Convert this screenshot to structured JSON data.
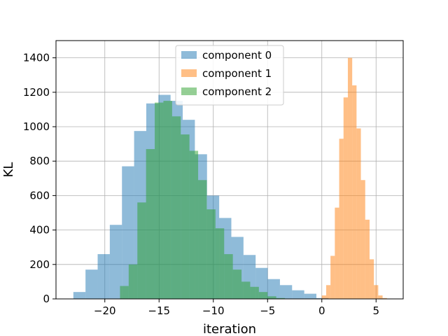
{
  "chart_data": {
    "type": "histogram",
    "xlabel": "iteration",
    "ylabel": "KL",
    "xlim": [
      -24.5,
      7.5
    ],
    "ylim": [
      0,
      1500
    ],
    "xticks": [
      -20,
      -15,
      -10,
      -5,
      0,
      5
    ],
    "yticks": [
      0,
      200,
      400,
      600,
      800,
      1000,
      1200,
      1400
    ],
    "xtick_labels": [
      "−20",
      "−15",
      "−10",
      "−5",
      "0",
      "5"
    ],
    "ytick_labels": [
      "0",
      "200",
      "400",
      "600",
      "800",
      "1000",
      "1200",
      "1400"
    ],
    "grid": true,
    "legend_position": "top-center",
    "series": [
      {
        "name": "component 0",
        "color": "#1f77b4",
        "alpha": 0.5,
        "bin_edges": [
          -22.9,
          -21.78,
          -20.66,
          -19.54,
          -18.42,
          -17.3,
          -16.18,
          -15.06,
          -13.94,
          -12.82,
          -11.7,
          -10.58,
          -9.46,
          -8.34,
          -7.22,
          -6.1,
          -4.98,
          -3.86,
          -2.74,
          -1.62,
          -0.5,
          0.62
        ],
        "counts": [
          40,
          170,
          260,
          430,
          770,
          975,
          1135,
          1185,
          1150,
          1040,
          840,
          600,
          470,
          360,
          255,
          180,
          115,
          80,
          50,
          30,
          5
        ]
      },
      {
        "name": "component 1",
        "color": "#ff7f0e",
        "alpha": 0.5,
        "bin_edges": [
          0.0,
          0.4,
          0.8,
          1.2,
          1.6,
          2.0,
          2.4,
          2.8,
          3.2,
          3.6,
          4.0,
          4.4,
          4.8,
          5.2,
          5.6,
          6.0
        ],
        "counts": [
          20,
          80,
          250,
          530,
          930,
          1170,
          1400,
          1240,
          990,
          690,
          460,
          230,
          80,
          20,
          5
        ]
      },
      {
        "name": "component 2",
        "color": "#2ca02c",
        "alpha": 0.5,
        "bin_edges": [
          -18.6,
          -17.8,
          -17.0,
          -16.2,
          -15.4,
          -14.6,
          -13.8,
          -13.0,
          -12.2,
          -11.4,
          -10.6,
          -9.8,
          -9.0,
          -8.2,
          -7.4,
          -6.6,
          -5.8,
          -5.0,
          -4.2,
          -3.4
        ],
        "counts": [
          75,
          200,
          560,
          870,
          1140,
          1150,
          1060,
          955,
          860,
          690,
          520,
          410,
          260,
          170,
          100,
          70,
          40,
          15,
          5
        ]
      }
    ]
  }
}
